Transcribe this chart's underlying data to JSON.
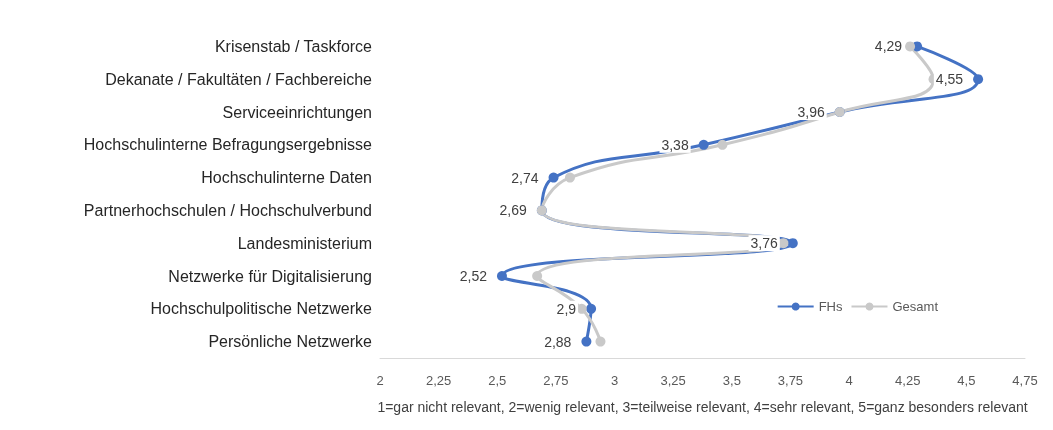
{
  "chart_data": {
    "type": "line",
    "orientation": "horizontal",
    "categories": [
      "Krisenstab / Taskforce",
      "Dekanate / Fakultäten / Fachbereiche",
      "Serviceeinrichtungen",
      "Hochschulinterne Befragungsergebnisse",
      "Hochschulinterne Daten",
      "Partnerhochschulen / Hochschulverbund",
      "Landesministerium",
      "Netzwerke für Digitalisierung",
      "Hochschulpolitische Netzwerke",
      "Persönliche Netzwerke"
    ],
    "series": [
      {
        "name": "FHs",
        "color": "#4472c4",
        "values": [
          4.29,
          4.55,
          3.96,
          3.38,
          2.74,
          2.69,
          3.76,
          2.52,
          2.9,
          2.88
        ],
        "value_labels": [
          "4,29",
          "4,55",
          "3,96",
          "3,38",
          "2,74",
          "2,69",
          "3,76",
          "2,52",
          "2,9",
          "2,88"
        ]
      },
      {
        "name": "Gesamt",
        "color": "#c9c9c9",
        "values": [
          4.26,
          4.36,
          3.96,
          3.46,
          2.81,
          2.69,
          3.72,
          2.67,
          2.86,
          2.94
        ]
      }
    ],
    "xlim": [
      2,
      4.75
    ],
    "xticks": [
      {
        "value": 2,
        "label": "2"
      },
      {
        "value": 2.25,
        "label": "2,25"
      },
      {
        "value": 2.5,
        "label": "2,5"
      },
      {
        "value": 2.75,
        "label": "2,75"
      },
      {
        "value": 3,
        "label": "3"
      },
      {
        "value": 3.25,
        "label": "3,25"
      },
      {
        "value": 3.5,
        "label": "3,5"
      },
      {
        "value": 3.75,
        "label": "3,75"
      },
      {
        "value": 4,
        "label": "4"
      },
      {
        "value": 4.25,
        "label": "4,25"
      },
      {
        "value": 4.5,
        "label": "4,5"
      },
      {
        "value": 4.75,
        "label": "4,75"
      }
    ],
    "xlabel": "1=gar nicht relevant, 2=wenig relevant, 3=teilweise relevant, 4=sehr relevant, 5=ganz besonders relevant",
    "grid": false,
    "legend": "bottom right",
    "marker": "circle",
    "line_style": "solid"
  }
}
